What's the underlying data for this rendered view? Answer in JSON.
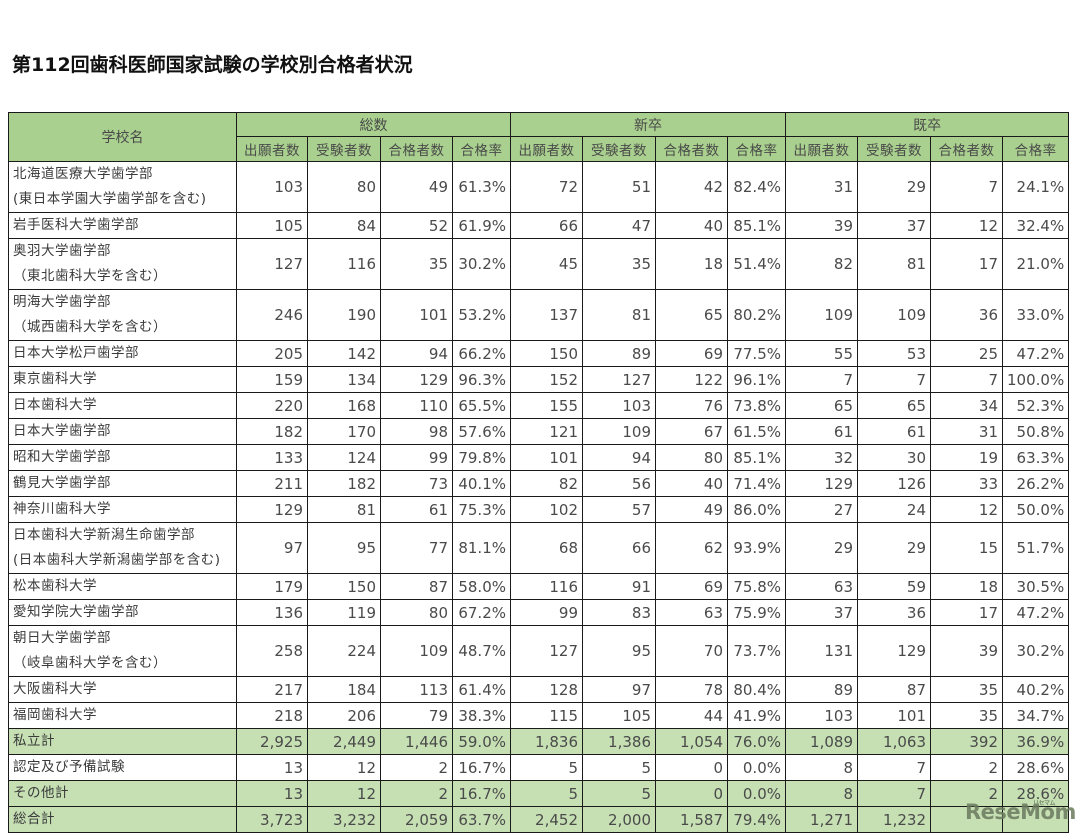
{
  "title": "第112回歯科医師国家試験の学校別合格者状況",
  "table": {
    "school_header": "学校名",
    "groups": [
      "総数",
      "新卒",
      "既卒"
    ],
    "subheaders": [
      "出願者数",
      "受験者数",
      "合格者数",
      "合格率"
    ],
    "rows": [
      {
        "name": [
          "北海道医療大学歯学部",
          "(東日本学園大学歯学部を含む)"
        ],
        "values": [
          "103",
          "80",
          "49",
          "61.3%",
          "72",
          "51",
          "42",
          "82.4%",
          "31",
          "29",
          "7",
          "24.1%"
        ],
        "total": false
      },
      {
        "name": [
          "岩手医科大学歯学部"
        ],
        "values": [
          "105",
          "84",
          "52",
          "61.9%",
          "66",
          "47",
          "40",
          "85.1%",
          "39",
          "37",
          "12",
          "32.4%"
        ],
        "total": false
      },
      {
        "name": [
          "奥羽大学歯学部",
          "（東北歯科大学を含む）"
        ],
        "values": [
          "127",
          "116",
          "35",
          "30.2%",
          "45",
          "35",
          "18",
          "51.4%",
          "82",
          "81",
          "17",
          "21.0%"
        ],
        "total": false
      },
      {
        "name": [
          "明海大学歯学部",
          "（城西歯科大学を含む）"
        ],
        "values": [
          "246",
          "190",
          "101",
          "53.2%",
          "137",
          "81",
          "65",
          "80.2%",
          "109",
          "109",
          "36",
          "33.0%"
        ],
        "total": false
      },
      {
        "name": [
          "日本大学松戸歯学部"
        ],
        "values": [
          "205",
          "142",
          "94",
          "66.2%",
          "150",
          "89",
          "69",
          "77.5%",
          "55",
          "53",
          "25",
          "47.2%"
        ],
        "total": false
      },
      {
        "name": [
          "東京歯科大学"
        ],
        "values": [
          "159",
          "134",
          "129",
          "96.3%",
          "152",
          "127",
          "122",
          "96.1%",
          "7",
          "7",
          "7",
          "100.0%"
        ],
        "total": false
      },
      {
        "name": [
          "日本歯科大学"
        ],
        "values": [
          "220",
          "168",
          "110",
          "65.5%",
          "155",
          "103",
          "76",
          "73.8%",
          "65",
          "65",
          "34",
          "52.3%"
        ],
        "total": false
      },
      {
        "name": [
          "日本大学歯学部"
        ],
        "values": [
          "182",
          "170",
          "98",
          "57.6%",
          "121",
          "109",
          "67",
          "61.5%",
          "61",
          "61",
          "31",
          "50.8%"
        ],
        "total": false
      },
      {
        "name": [
          "昭和大学歯学部"
        ],
        "values": [
          "133",
          "124",
          "99",
          "79.8%",
          "101",
          "94",
          "80",
          "85.1%",
          "32",
          "30",
          "19",
          "63.3%"
        ],
        "total": false
      },
      {
        "name": [
          "鶴見大学歯学部"
        ],
        "values": [
          "211",
          "182",
          "73",
          "40.1%",
          "82",
          "56",
          "40",
          "71.4%",
          "129",
          "126",
          "33",
          "26.2%"
        ],
        "total": false
      },
      {
        "name": [
          "神奈川歯科大学"
        ],
        "values": [
          "129",
          "81",
          "61",
          "75.3%",
          "102",
          "57",
          "49",
          "86.0%",
          "27",
          "24",
          "12",
          "50.0%"
        ],
        "total": false
      },
      {
        "name": [
          "日本歯科大学新潟生命歯学部",
          "(日本歯科大学新潟歯学部を含む)"
        ],
        "values": [
          "97",
          "95",
          "77",
          "81.1%",
          "68",
          "66",
          "62",
          "93.9%",
          "29",
          "29",
          "15",
          "51.7%"
        ],
        "total": false
      },
      {
        "name": [
          "松本歯科大学"
        ],
        "values": [
          "179",
          "150",
          "87",
          "58.0%",
          "116",
          "91",
          "69",
          "75.8%",
          "63",
          "59",
          "18",
          "30.5%"
        ],
        "total": false
      },
      {
        "name": [
          "愛知学院大学歯学部"
        ],
        "values": [
          "136",
          "119",
          "80",
          "67.2%",
          "99",
          "83",
          "63",
          "75.9%",
          "37",
          "36",
          "17",
          "47.2%"
        ],
        "total": false
      },
      {
        "name": [
          "朝日大学歯学部",
          "（岐阜歯科大学を含む）"
        ],
        "values": [
          "258",
          "224",
          "109",
          "48.7%",
          "127",
          "95",
          "70",
          "73.7%",
          "131",
          "129",
          "39",
          "30.2%"
        ],
        "total": false
      },
      {
        "name": [
          "大阪歯科大学"
        ],
        "values": [
          "217",
          "184",
          "113",
          "61.4%",
          "128",
          "97",
          "78",
          "80.4%",
          "89",
          "87",
          "35",
          "40.2%"
        ],
        "total": false
      },
      {
        "name": [
          "福岡歯科大学"
        ],
        "values": [
          "218",
          "206",
          "79",
          "38.3%",
          "115",
          "105",
          "44",
          "41.9%",
          "103",
          "101",
          "35",
          "34.7%"
        ],
        "total": false
      },
      {
        "name": [
          "私立計"
        ],
        "values": [
          "2,925",
          "2,449",
          "1,446",
          "59.0%",
          "1,836",
          "1,386",
          "1,054",
          "76.0%",
          "1,089",
          "1,063",
          "392",
          "36.9%"
        ],
        "total": true
      },
      {
        "name": [
          "認定及び予備試験"
        ],
        "values": [
          "13",
          "12",
          "2",
          "16.7%",
          "5",
          "5",
          "0",
          "0.0%",
          "8",
          "7",
          "2",
          "28.6%"
        ],
        "total": false
      },
      {
        "name": [
          "その他計"
        ],
        "values": [
          "13",
          "12",
          "2",
          "16.7%",
          "5",
          "5",
          "0",
          "0.0%",
          "8",
          "7",
          "2",
          "28.6%"
        ],
        "total": true
      },
      {
        "name": [
          "総合計"
        ],
        "values": [
          "3,723",
          "3,232",
          "2,059",
          "63.7%",
          "2,452",
          "2,000",
          "1,587",
          "79.4%",
          "1,271",
          "1,232",
          "",
          ""
        ],
        "total": true
      }
    ]
  },
  "watermark": {
    "text": "ReseMom",
    "ruby": "リセマム"
  },
  "colors": {
    "header_green": "#a9d08e",
    "total_row_green": "#c6e0b4",
    "border": "#1a1a1a"
  }
}
